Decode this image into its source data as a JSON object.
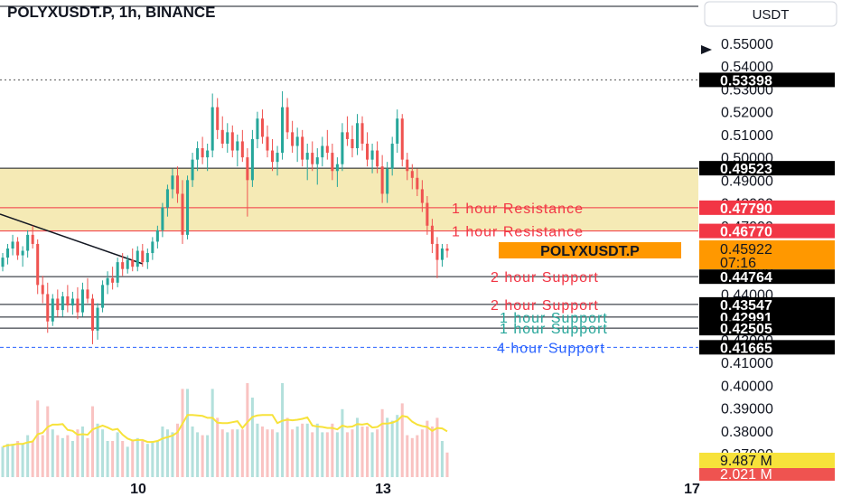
{
  "header": {
    "title": "POLYXUSDT.P, 1h, BINANCE",
    "currency": "USDT"
  },
  "colors": {
    "background": "#ffffff",
    "zone_fill": "#f3e6a8",
    "resistance": "#f23645",
    "support_red": "#f23645",
    "support_green": "#26a69a",
    "support_blue": "#2962ff",
    "price_tag": "#ff9800",
    "candle_up": "#26a69a",
    "candle_down": "#ef5350",
    "volume_ma": "#f7e23a"
  },
  "chart_data": {
    "type": "candlestick",
    "title": "POLYXUSDT.P, 1h, BINANCE",
    "y_axis": {
      "ticks": [
        "0.55000",
        "0.54000",
        "0.53000",
        "0.52000",
        "0.51000",
        "0.50000",
        "0.49000",
        "0.48000",
        "0.47000",
        "0.46000",
        "0.45000",
        "0.44000",
        "0.43000",
        "0.42000",
        "0.41000",
        "0.40000",
        "0.39000",
        "0.38000",
        "0.37000"
      ],
      "range": [
        0.365,
        0.558
      ]
    },
    "x_axis": {
      "ticks": [
        "10",
        "13",
        "17"
      ]
    },
    "zone": {
      "from": 0.4677,
      "to": 0.49523
    },
    "levels": [
      {
        "value": 0.53398,
        "label": "",
        "tag": "0.53398",
        "style": "dotted",
        "tag_color": "black"
      },
      {
        "value": 0.49523,
        "label": "",
        "tag": "0.49523",
        "style": "solid",
        "tag_color": "black"
      },
      {
        "value": 0.4779,
        "label": "1 hour Resistance",
        "tag": "0.47790",
        "style": "red",
        "tag_color": "red"
      },
      {
        "value": 0.4677,
        "label": "1 hour Resistance",
        "tag": "0.46770",
        "style": "red",
        "tag_color": "red"
      },
      {
        "value": 0.44764,
        "label": "2 hour Support",
        "tag": "0.44764",
        "style": "solid",
        "tag_color": "black",
        "label_color": "red"
      },
      {
        "value": 0.43547,
        "label": "2 hour Support",
        "tag": "0.43547",
        "style": "solid",
        "tag_color": "black",
        "label_color": "red"
      },
      {
        "value": 0.42991,
        "label": "1 hour Support",
        "tag": "0.42991",
        "style": "solid",
        "tag_color": "black",
        "label_color": "green"
      },
      {
        "value": 0.42505,
        "label": "1 hour Support",
        "tag": "0.42505",
        "style": "solid",
        "tag_color": "black",
        "label_color": "green"
      },
      {
        "value": 0.41665,
        "label": "4 hour Support",
        "tag": "0.41665",
        "style": "dashed",
        "tag_color": "black",
        "label_color": "blue"
      }
    ],
    "current_price": {
      "symbol": "POLYXUSDT.P",
      "value": "0.45922",
      "countdown": "07:16"
    },
    "volume": {
      "last": "9.487 M",
      "ma": "2.021 M"
    },
    "candles_sample": [
      [
        0.452,
        0.458,
        0.45,
        0.456
      ],
      [
        0.456,
        0.462,
        0.453,
        0.46
      ],
      [
        0.46,
        0.466,
        0.457,
        0.463
      ],
      [
        0.463,
        0.465,
        0.455,
        0.457
      ],
      [
        0.457,
        0.461,
        0.452,
        0.459
      ],
      [
        0.459,
        0.468,
        0.456,
        0.466
      ],
      [
        0.466,
        0.47,
        0.46,
        0.462
      ],
      [
        0.462,
        0.464,
        0.44,
        0.444
      ],
      [
        0.444,
        0.448,
        0.436,
        0.44
      ],
      [
        0.44,
        0.445,
        0.423,
        0.428
      ],
      [
        0.428,
        0.44,
        0.426,
        0.438
      ],
      [
        0.438,
        0.442,
        0.43,
        0.433
      ],
      [
        0.433,
        0.441,
        0.43,
        0.439
      ],
      [
        0.439,
        0.444,
        0.432,
        0.435
      ],
      [
        0.435,
        0.441,
        0.431,
        0.438
      ],
      [
        0.438,
        0.443,
        0.429,
        0.432
      ],
      [
        0.432,
        0.445,
        0.43,
        0.442
      ],
      [
        0.442,
        0.447,
        0.436,
        0.438
      ],
      [
        0.438,
        0.44,
        0.418,
        0.424
      ],
      [
        0.424,
        0.436,
        0.42,
        0.434
      ],
      [
        0.434,
        0.446,
        0.432,
        0.444
      ],
      [
        0.444,
        0.45,
        0.44,
        0.447
      ],
      [
        0.447,
        0.452,
        0.442,
        0.445
      ],
      [
        0.445,
        0.456,
        0.443,
        0.454
      ],
      [
        0.454,
        0.458,
        0.448,
        0.451
      ],
      [
        0.451,
        0.457,
        0.449,
        0.455
      ],
      [
        0.455,
        0.46,
        0.45,
        0.452
      ],
      [
        0.452,
        0.461,
        0.45,
        0.459
      ],
      [
        0.459,
        0.462,
        0.452,
        0.454
      ],
      [
        0.454,
        0.46,
        0.451,
        0.458
      ],
      [
        0.458,
        0.465,
        0.455,
        0.463
      ],
      [
        0.463,
        0.47,
        0.46,
        0.468
      ],
      [
        0.468,
        0.48,
        0.465,
        0.478
      ],
      [
        0.478,
        0.488,
        0.474,
        0.486
      ],
      [
        0.486,
        0.495,
        0.482,
        0.492
      ],
      [
        0.492,
        0.496,
        0.48,
        0.484
      ],
      [
        0.484,
        0.49,
        0.462,
        0.466
      ],
      [
        0.466,
        0.492,
        0.464,
        0.49
      ],
      [
        0.49,
        0.502,
        0.487,
        0.499
      ],
      [
        0.499,
        0.507,
        0.494,
        0.504
      ],
      [
        0.504,
        0.509,
        0.497,
        0.5
      ],
      [
        0.5,
        0.506,
        0.494,
        0.503
      ],
      [
        0.503,
        0.528,
        0.5,
        0.522
      ],
      [
        0.522,
        0.526,
        0.508,
        0.512
      ],
      [
        0.512,
        0.518,
        0.504,
        0.506
      ],
      [
        0.506,
        0.515,
        0.502,
        0.511
      ],
      [
        0.511,
        0.514,
        0.5,
        0.503
      ],
      [
        0.503,
        0.51,
        0.496,
        0.507
      ],
      [
        0.507,
        0.512,
        0.498,
        0.5
      ],
      [
        0.5,
        0.504,
        0.474,
        0.49
      ],
      [
        0.49,
        0.512,
        0.487,
        0.508
      ],
      [
        0.508,
        0.52,
        0.504,
        0.517
      ],
      [
        0.517,
        0.521,
        0.506,
        0.509
      ],
      [
        0.509,
        0.514,
        0.5,
        0.503
      ],
      [
        0.503,
        0.508,
        0.494,
        0.498
      ],
      [
        0.498,
        0.505,
        0.492,
        0.502
      ],
      [
        0.502,
        0.529,
        0.499,
        0.522
      ],
      [
        0.522,
        0.526,
        0.508,
        0.511
      ],
      [
        0.511,
        0.516,
        0.502,
        0.505
      ],
      [
        0.505,
        0.513,
        0.498,
        0.509
      ],
      [
        0.509,
        0.512,
        0.496,
        0.499
      ],
      [
        0.499,
        0.506,
        0.49,
        0.502
      ],
      [
        0.502,
        0.507,
        0.494,
        0.497
      ],
      [
        0.497,
        0.504,
        0.488,
        0.5
      ],
      [
        0.5,
        0.509,
        0.496,
        0.505
      ],
      [
        0.505,
        0.512,
        0.499,
        0.502
      ],
      [
        0.502,
        0.506,
        0.49,
        0.494
      ],
      [
        0.494,
        0.5,
        0.487,
        0.497
      ],
      [
        0.497,
        0.515,
        0.494,
        0.511
      ],
      [
        0.511,
        0.518,
        0.505,
        0.508
      ],
      [
        0.508,
        0.514,
        0.5,
        0.504
      ],
      [
        0.504,
        0.519,
        0.501,
        0.515
      ],
      [
        0.515,
        0.518,
        0.503,
        0.506
      ],
      [
        0.506,
        0.511,
        0.496,
        0.499
      ],
      [
        0.499,
        0.506,
        0.493,
        0.503
      ],
      [
        0.503,
        0.507,
        0.493,
        0.496
      ],
      [
        0.496,
        0.501,
        0.48,
        0.484
      ],
      [
        0.484,
        0.498,
        0.48,
        0.495
      ],
      [
        0.495,
        0.509,
        0.492,
        0.506
      ],
      [
        0.506,
        0.521,
        0.502,
        0.517
      ],
      [
        0.517,
        0.519,
        0.496,
        0.499
      ],
      [
        0.499,
        0.502,
        0.49,
        0.494
      ],
      [
        0.494,
        0.497,
        0.486,
        0.491
      ],
      [
        0.491,
        0.495,
        0.483,
        0.486
      ],
      [
        0.486,
        0.49,
        0.476,
        0.48
      ],
      [
        0.48,
        0.483,
        0.466,
        0.47
      ],
      [
        0.47,
        0.473,
        0.458,
        0.462
      ],
      [
        0.462,
        0.465,
        0.447,
        0.455
      ],
      [
        0.455,
        0.462,
        0.452,
        0.46
      ],
      [
        0.46,
        0.462,
        0.456,
        0.459
      ]
    ]
  }
}
